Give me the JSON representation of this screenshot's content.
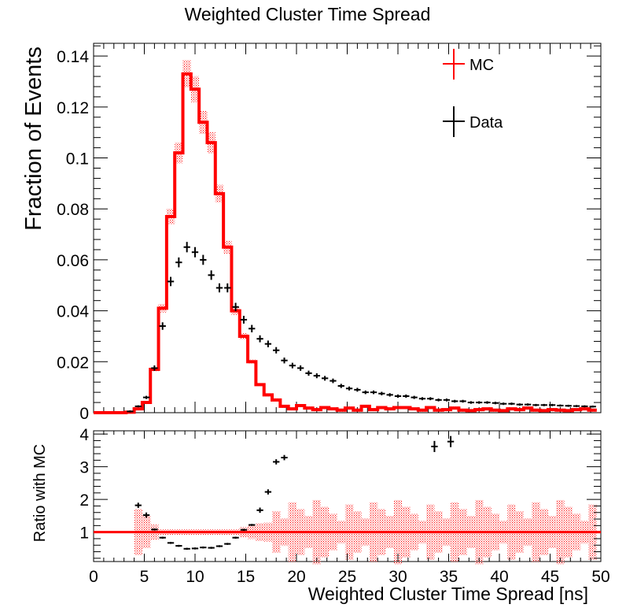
{
  "chart_data": {
    "type": "line",
    "title": "Weighted Cluster Time Spread",
    "xlabel": "Weighted Cluster Time Spread [ns]",
    "top_panel": {
      "ylabel": "Fraction of Events",
      "ylim": [
        0,
        0.145
      ],
      "yticks": [
        "0",
        "0.02",
        "0.04",
        "0.06",
        "0.08",
        "0.1",
        "0.12",
        "0.14"
      ],
      "ytick_values": [
        0,
        0.02,
        0.04,
        0.06,
        0.08,
        0.1,
        0.12,
        0.14
      ]
    },
    "bottom_panel": {
      "ylabel": "Ratio with MC",
      "ylim": [
        0.1,
        4.1
      ],
      "yticks": [
        "1",
        "2",
        "3",
        "4"
      ],
      "ytick_values": [
        1,
        2,
        3,
        4
      ]
    },
    "xlim": [
      0,
      50
    ],
    "xticks": [
      "0",
      "5",
      "10",
      "15",
      "20",
      "25",
      "30",
      "35",
      "40",
      "45",
      "50"
    ],
    "xtick_values": [
      0,
      5,
      10,
      15,
      20,
      25,
      30,
      35,
      40,
      45,
      50
    ],
    "bin_width": 0.8,
    "legend": {
      "position": "top-right",
      "entries": [
        {
          "label": "MC",
          "color": "#ff0000"
        },
        {
          "label": "Data",
          "color": "#000000"
        }
      ]
    },
    "series": [
      {
        "name": "MC",
        "color": "#ff0000",
        "x": [
          0.4,
          1.2,
          2.0,
          2.8,
          3.6,
          4.4,
          5.2,
          6.0,
          6.8,
          7.6,
          8.4,
          9.2,
          10.0,
          10.8,
          11.6,
          12.4,
          13.2,
          14.0,
          14.8,
          15.6,
          16.4,
          17.2,
          18.0,
          18.8,
          19.6,
          20.4,
          21.2,
          22.0,
          22.8,
          23.6,
          24.4,
          25.2,
          26.0,
          26.8,
          27.6,
          28.4,
          29.2,
          30.0,
          30.8,
          31.6,
          32.4,
          33.2,
          34.0,
          34.8,
          35.6,
          36.4,
          37.2,
          38.0,
          38.8,
          39.6,
          40.4,
          41.2,
          42.0,
          42.8,
          43.6,
          44.4,
          45.2,
          46.0,
          46.8,
          47.6,
          48.4,
          49.2
        ],
        "values": [
          0.0,
          0.0,
          0.0,
          0.0,
          0.0002,
          0.0015,
          0.004,
          0.017,
          0.041,
          0.077,
          0.102,
          0.133,
          0.127,
          0.114,
          0.106,
          0.086,
          0.065,
          0.04,
          0.03,
          0.02,
          0.011,
          0.007,
          0.005,
          0.0025,
          0.0015,
          0.0028,
          0.0018,
          0.0012,
          0.002,
          0.0015,
          0.001,
          0.0018,
          0.001,
          0.0025,
          0.0012,
          0.002,
          0.0015,
          0.002,
          0.002,
          0.0015,
          0.001,
          0.002,
          0.001,
          0.0012,
          0.0018,
          0.001,
          0.0008,
          0.0012,
          0.0015,
          0.001,
          0.0008,
          0.0015,
          0.0012,
          0.0018,
          0.001,
          0.0008,
          0.0012,
          0.001,
          0.0008,
          0.0012,
          0.0015,
          0.001
        ]
      },
      {
        "name": "Data",
        "color": "#000000",
        "x": [
          0.4,
          1.2,
          2.0,
          2.8,
          3.6,
          4.4,
          5.2,
          6.0,
          6.8,
          7.6,
          8.4,
          9.2,
          10.0,
          10.8,
          11.6,
          12.4,
          13.2,
          14.0,
          14.8,
          15.6,
          16.4,
          17.2,
          18.0,
          18.8,
          19.6,
          20.4,
          21.2,
          22.0,
          22.8,
          23.6,
          24.4,
          25.2,
          26.0,
          26.8,
          27.6,
          28.4,
          29.2,
          30.0,
          30.8,
          31.6,
          32.4,
          33.2,
          34.0,
          34.8,
          35.6,
          36.4,
          37.2,
          38.0,
          38.8,
          39.6,
          40.4,
          41.2,
          42.0,
          42.8,
          43.6,
          44.4,
          45.2,
          46.0,
          46.8,
          47.6,
          48.4,
          49.2
        ],
        "values": [
          0.0,
          0.0,
          0.0,
          0.0,
          0.0005,
          0.0025,
          0.006,
          0.0175,
          0.034,
          0.0515,
          0.059,
          0.065,
          0.063,
          0.06,
          0.054,
          0.049,
          0.049,
          0.0415,
          0.0365,
          0.033,
          0.029,
          0.027,
          0.0245,
          0.0205,
          0.0185,
          0.0175,
          0.0155,
          0.0145,
          0.0135,
          0.0125,
          0.0105,
          0.0095,
          0.009,
          0.008,
          0.008,
          0.0075,
          0.007,
          0.0065,
          0.0065,
          0.006,
          0.0055,
          0.0055,
          0.005,
          0.005,
          0.0045,
          0.0045,
          0.004,
          0.004,
          0.004,
          0.0038,
          0.0035,
          0.0035,
          0.0032,
          0.0032,
          0.003,
          0.003,
          0.003,
          0.0028,
          0.0027,
          0.0026,
          0.0025,
          0.0024
        ]
      },
      {
        "name": "Ratio with MC",
        "color": "#000000",
        "x": [
          4.4,
          5.2,
          6.0,
          6.8,
          7.6,
          8.4,
          9.2,
          10.0,
          10.8,
          11.6,
          12.4,
          13.2,
          14.0,
          14.8,
          15.6,
          16.4,
          17.2,
          18.0,
          18.8,
          33.6,
          35.2
        ],
        "values": [
          1.82,
          1.52,
          1.08,
          0.83,
          0.67,
          0.58,
          0.49,
          0.5,
          0.53,
          0.52,
          0.57,
          0.64,
          0.83,
          1.07,
          1.22,
          1.67,
          2.23,
          3.15,
          3.28,
          3.62,
          3.77
        ]
      }
    ]
  }
}
